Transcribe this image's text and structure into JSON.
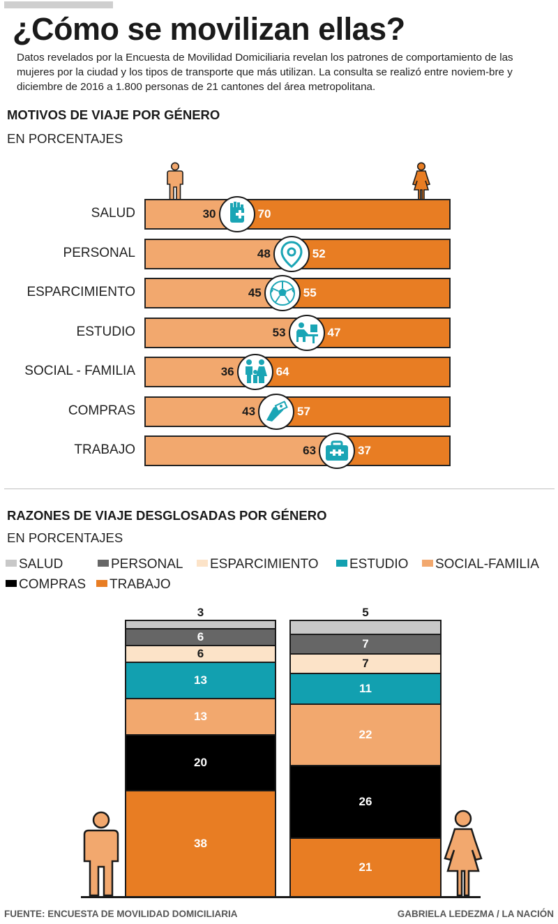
{
  "header": {
    "title": "¿Cómo se movilizan ellas?",
    "lead": "Datos revelados por la Encuesta de Movilidad Domiciliaria revelan los patrones de comportamiento de las mujeres por la ciudad y los tipos de transporte que más utilizan. La consulta se realizó entre noviem-bre y diciembre de 2016 a 1.800 personas de 21 cantones del área metropolitana."
  },
  "section1": {
    "title": "MOTIVOS DE VIAJE POR GÉNERO",
    "subtitle": "EN PORCENTAJES"
  },
  "section2": {
    "title": "RAZONES DE VIAJE DESGLOSADAS POR GÉNERO",
    "subtitle": "EN PORCENTAJES"
  },
  "footer": {
    "source": "FUENTE: ENCUESTA DE MOVILIDAD DOMICILIARIA",
    "credit": "GABRIELA LEDEZMA / LA NACIÓN"
  },
  "colors": {
    "male_bar": "#f2a86e",
    "female_bar": "#e87d23",
    "icon_teal": "#1aa5b5",
    "salud": "#c8c8c8",
    "personal": "#666666",
    "esparcimiento": "#fce3c8",
    "estudio": "#12a0b0",
    "social_familia": "#f2a86e",
    "compras": "#000000",
    "trabajo": "#e87d23"
  },
  "chart_data": [
    {
      "type": "bar",
      "orientation": "horizontal-diverging",
      "title": "MOTIVOS DE VIAJE POR GÉNERO",
      "subtitle": "EN PORCENTAJES",
      "categories": [
        "SALUD",
        "PERSONAL",
        "ESPARCIMIENTO",
        "ESTUDIO",
        "SOCIAL - FAMILIA",
        "COMPRAS",
        "TRABAJO"
      ],
      "icons": [
        "medical-hand-icon",
        "location-pin-icon",
        "soccer-ball-icon",
        "student-desk-icon",
        "family-icon",
        "shopping-cash-icon",
        "briefcase-icon"
      ],
      "series": [
        {
          "name": "Hombres",
          "values": [
            30,
            48,
            45,
            53,
            36,
            43,
            63
          ]
        },
        {
          "name": "Mujeres",
          "values": [
            70,
            52,
            55,
            47,
            64,
            57,
            37
          ]
        }
      ],
      "xlim": [
        0,
        100
      ]
    },
    {
      "type": "bar",
      "orientation": "stacked-vertical",
      "title": "RAZONES DE VIAJE DESGLOSADAS POR GÉNERO",
      "subtitle": "EN PORCENTAJES",
      "legend": [
        "SALUD",
        "PERSONAL",
        "ESPARCIMIENTO",
        "ESTUDIO",
        "SOCIAL-FAMILIA",
        "COMPRAS",
        "TRABAJO"
      ],
      "categories": [
        "Hombres",
        "Mujeres"
      ],
      "series": [
        {
          "name": "SALUD",
          "values": [
            3,
            5
          ]
        },
        {
          "name": "PERSONAL",
          "values": [
            6,
            7
          ]
        },
        {
          "name": "ESPARCIMIENTO",
          "values": [
            6,
            7
          ]
        },
        {
          "name": "ESTUDIO",
          "values": [
            13,
            11
          ]
        },
        {
          "name": "SOCIAL-FAMILIA",
          "values": [
            13,
            22
          ]
        },
        {
          "name": "COMPRAS",
          "values": [
            20,
            26
          ]
        },
        {
          "name": "TRABAJO",
          "values": [
            38,
            21
          ]
        }
      ],
      "ylim": [
        0,
        100
      ]
    }
  ]
}
